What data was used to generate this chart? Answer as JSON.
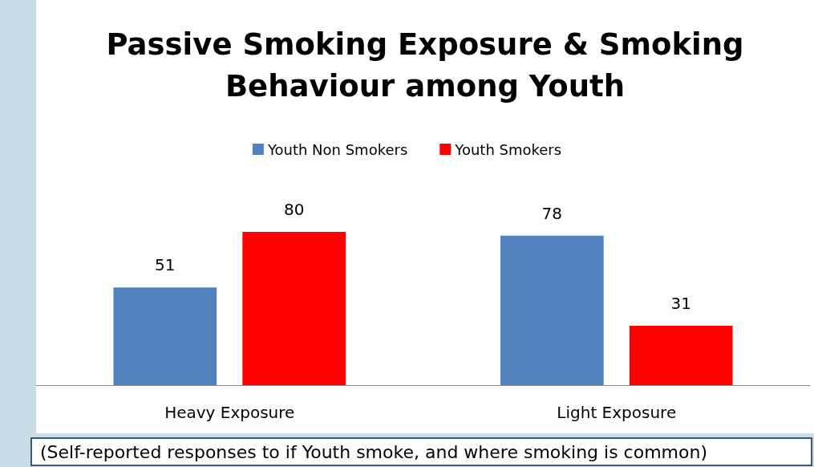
{
  "chart_data": {
    "type": "bar",
    "title": "Passive Smoking Exposure & Smoking Behaviour among Youth",
    "categories": [
      "Heavy Exposure",
      "Light Exposure"
    ],
    "series": [
      {
        "name": "Youth Non Smokers",
        "color": "#4f81bd",
        "values": [
          51,
          78
        ]
      },
      {
        "name": "Youth Smokers",
        "color": "#ff0000",
        "values": [
          80,
          31
        ]
      }
    ],
    "data_labels": true,
    "legend": "top",
    "annotations": [
      "(Self-reported responses to if Youth smoke, and where smoking is common)"
    ]
  }
}
